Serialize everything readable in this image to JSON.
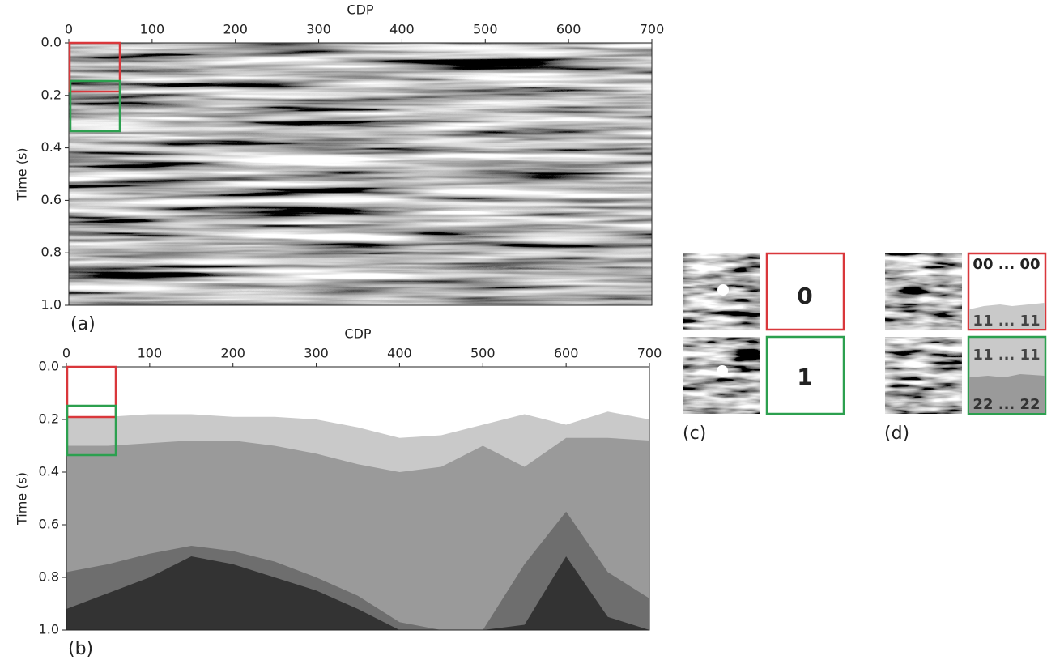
{
  "chart_data": [
    {
      "type": "image",
      "panel_label": "(a)",
      "xlabel": "CDP",
      "ylabel": "Time (s)",
      "xlim": [
        0,
        700
      ],
      "ylim": [
        0,
        1
      ],
      "y_inverted": true,
      "xaxis_position": "top",
      "xticks": [
        0,
        100,
        200,
        300,
        400,
        500,
        600,
        700
      ],
      "yticks": [
        {
          "value": 0,
          "label": "0.0"
        },
        0.2,
        0.4,
        0.6,
        0.8,
        {
          "value": 1,
          "label": "1.0"
        }
      ]
    },
    {
      "type": "layers",
      "panel_label": "(b)",
      "xlabel": "CDP",
      "ylabel": "Time (s)",
      "xlim": [
        0,
        700
      ],
      "ylim": [
        0,
        1
      ],
      "y_inverted": true,
      "xaxis_position": "top",
      "xticks": [
        0,
        100,
        200,
        300,
        400,
        500,
        600,
        700
      ],
      "yticks": [
        {
          "value": 0,
          "label": "0.0"
        },
        0.2,
        0.4,
        0.6,
        0.8,
        {
          "value": 1,
          "label": "1.0"
        }
      ],
      "x": [
        0,
        50,
        100,
        150,
        200,
        250,
        300,
        350,
        400,
        450,
        500,
        550,
        600,
        650,
        700
      ],
      "top_color": "#ffffff",
      "series": [
        {
          "color": "#c9c9c9",
          "values": [
            0.19,
            0.19,
            0.18,
            0.18,
            0.19,
            0.19,
            0.2,
            0.23,
            0.27,
            0.26,
            0.22,
            0.18,
            0.22,
            0.17,
            0.2
          ]
        },
        {
          "color": "#9a9a9a",
          "values": [
            0.3,
            0.3,
            0.29,
            0.28,
            0.28,
            0.3,
            0.33,
            0.37,
            0.4,
            0.38,
            0.3,
            0.38,
            0.27,
            0.27,
            0.28
          ]
        },
        {
          "color": "#6e6e6e",
          "values": [
            0.78,
            0.75,
            0.71,
            0.68,
            0.7,
            0.74,
            0.8,
            0.87,
            0.97,
            1.0,
            1.0,
            0.75,
            0.55,
            0.78,
            0.88
          ]
        },
        {
          "color": "#333333",
          "values": [
            0.92,
            0.86,
            0.8,
            0.72,
            0.75,
            0.8,
            0.85,
            0.92,
            1.0,
            1.0,
            1.0,
            0.98,
            0.72,
            0.95,
            1.0
          ]
        }
      ]
    }
  ],
  "panel_c": {
    "label": "(c)",
    "classes": [
      "0",
      "1"
    ]
  },
  "panel_d": {
    "label": "(d)",
    "top_labels": [
      "00 ... 00",
      "11 ... 11"
    ],
    "bottom_labels": [
      "11 ... 11",
      "22 ... 22"
    ]
  }
}
